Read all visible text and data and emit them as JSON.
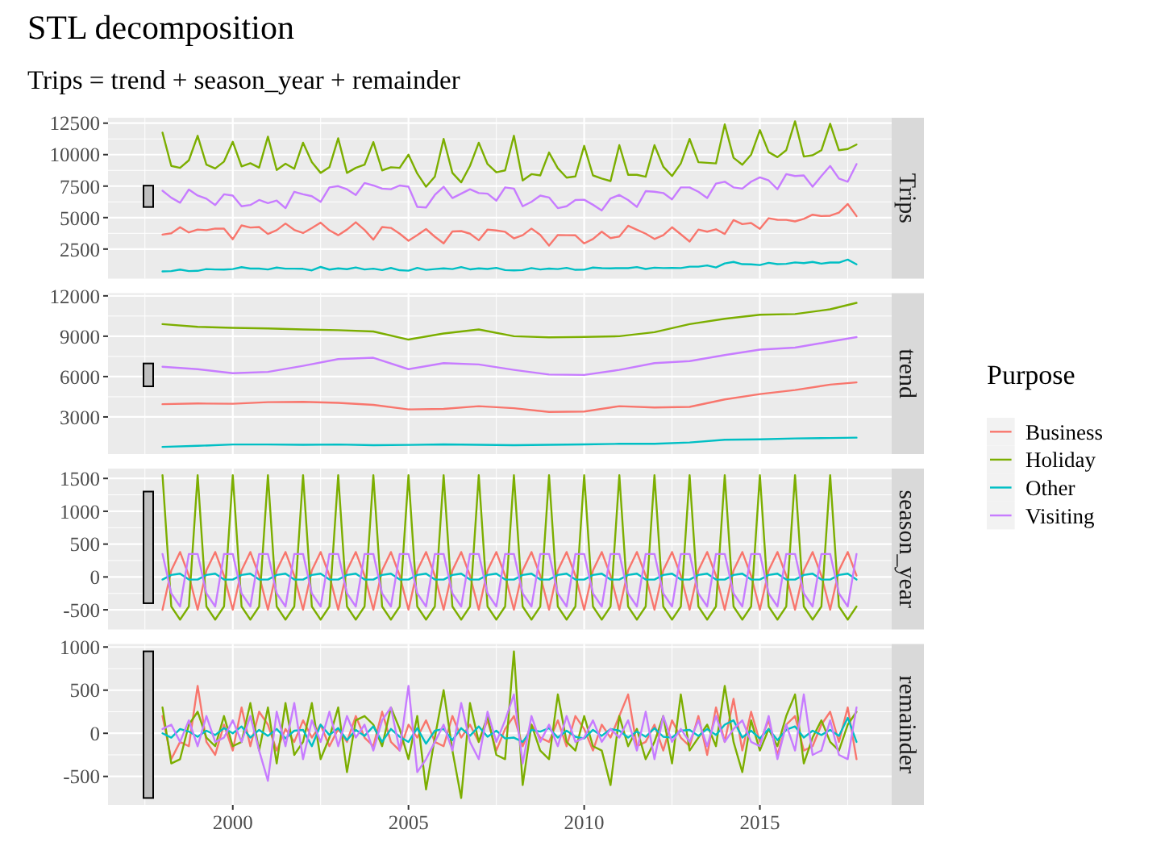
{
  "chart_data": [
    {
      "type": "line",
      "title": "STL decomposition",
      "subtitle": "Trips = trend + season_year + remainder",
      "ylabel": "Trips",
      "legend": "right",
      "legend_title": "Purpose",
      "grid": true,
      "tick_labels": "y",
      "xlim": [
        1996.45,
        2018.75
      ],
      "xticks": [
        {
          "value": 1997.5,
          "label": null
        },
        2000,
        {
          "value": 2002.5,
          "label": null
        },
        2005,
        {
          "value": 2007.5,
          "label": null
        },
        2010,
        {
          "value": 2012.5,
          "label": null
        },
        2015,
        {
          "value": 2017.5,
          "label": null
        }
      ],
      "ylim": [
        150,
        12930
      ],
      "yticks": [
        2500,
        5000,
        7500,
        10000,
        12500
      ],
      "x": [
        1998,
        1998.25,
        1998.5,
        1998.75,
        1999,
        1999.25,
        1999.5,
        1999.75,
        2000,
        2000.25,
        2000.5,
        2000.75,
        2001,
        2001.25,
        2001.5,
        2001.75,
        2002,
        2002.25,
        2002.5,
        2002.75,
        2003,
        2003.25,
        2003.5,
        2003.75,
        2004,
        2004.25,
        2004.5,
        2004.75,
        2005,
        2005.25,
        2005.5,
        2005.75,
        2006,
        2006.25,
        2006.5,
        2006.75,
        2007,
        2007.25,
        2007.5,
        2007.75,
        2008,
        2008.25,
        2008.5,
        2008.75,
        2009,
        2009.25,
        2009.5,
        2009.75,
        2010,
        2010.25,
        2010.5,
        2010.75,
        2011,
        2011.25,
        2011.5,
        2011.75,
        2012,
        2012.25,
        2012.5,
        2012.75,
        2013,
        2013.25,
        2013.5,
        2013.75,
        2014,
        2014.25,
        2014.5,
        2014.75,
        2015,
        2015.25,
        2015.5,
        2015.75,
        2016,
        2016.25,
        2016.5,
        2016.75,
        2017,
        2017.25,
        2017.5,
        2017.75
      ],
      "series": [
        {
          "name": "Business",
          "color": "#f8766d",
          "values": [
            3650,
            3750,
            4230,
            3820,
            4050,
            4000,
            4130,
            4120,
            3280,
            4380,
            4210,
            4250,
            3700,
            4000,
            4530,
            4020,
            3770,
            4170,
            4600,
            3990,
            3600,
            4050,
            4630,
            4020,
            3250,
            4250,
            4180,
            3720,
            3160,
            3610,
            4090,
            3480,
            2950,
            3900,
            3930,
            3720,
            3200,
            4050,
            3980,
            3870,
            3350,
            3600,
            4130,
            3620,
            2770,
            3620,
            3600,
            3590,
            2950,
            3300,
            3880,
            3370,
            3500,
            4350,
            4030,
            3720,
            3300,
            3600,
            4230,
            3670,
            3100,
            4050,
            3880,
            4070,
            3700,
            4800,
            4480,
            4570,
            4100,
            4950,
            4830,
            4820,
            4700,
            4900,
            5230,
            5120,
            5150,
            5400,
            6080,
            5120
          ]
        },
        {
          "name": "Holiday",
          "color": "#7cae00",
          "values": [
            11750,
            9100,
            8950,
            9550,
            11500,
            9200,
            8900,
            9450,
            11020,
            9070,
            9320,
            8970,
            11430,
            8780,
            9280,
            8880,
            10950,
            9400,
            8550,
            9000,
            11300,
            8550,
            8950,
            9200,
            11000,
            8750,
            9000,
            8950,
            10000,
            8500,
            7450,
            8250,
            11250,
            8550,
            7800,
            9100,
            10950,
            9250,
            8600,
            8750,
            11500,
            7950,
            8450,
            8350,
            10170,
            8920,
            8170,
            8270,
            10700,
            8350,
            8100,
            7900,
            10750,
            8400,
            8400,
            8250,
            10750,
            9050,
            8300,
            9300,
            11250,
            9400,
            9350,
            9300,
            12400,
            9750,
            9200,
            10000,
            11950,
            10200,
            9800,
            10350,
            12650,
            9850,
            9950,
            10350,
            12450,
            10350,
            10450,
            10800
          ]
        },
        {
          "name": "Other",
          "color": "#00bfc4",
          "values": [
            730,
            750,
            870,
            750,
            770,
            910,
            880,
            870,
            910,
            1060,
            950,
            950,
            880,
            1030,
            940,
            940,
            930,
            810,
            1080,
            870,
            970,
            900,
            1040,
            880,
            940,
            830,
            1000,
            820,
            780,
            1010,
            850,
            910,
            970,
            910,
            1070,
            890,
            970,
            920,
            1010,
            830,
            810,
            830,
            990,
            880,
            950,
            910,
            1010,
            850,
            860,
            1030,
            980,
            970,
            990,
            980,
            1070,
            920,
            1020,
            990,
            1000,
            990,
            1100,
            1100,
            1200,
            1040,
            1360,
            1480,
            1300,
            1290,
            1230,
            1410,
            1300,
            1330,
            1440,
            1380,
            1480,
            1340,
            1430,
            1430,
            1660,
            1290
          ]
        },
        {
          "name": "Visiting",
          "color": "#c77cff",
          "values": [
            7130,
            6580,
            6180,
            7230,
            6750,
            6500,
            6000,
            6850,
            6750,
            5900,
            6000,
            6400,
            6150,
            6350,
            5750,
            7050,
            6850,
            6700,
            6250,
            7400,
            7500,
            7250,
            6800,
            7750,
            7550,
            7300,
            7250,
            7550,
            7450,
            5850,
            5800,
            6800,
            7450,
            6550,
            6900,
            7250,
            6950,
            6900,
            6350,
            7400,
            7300,
            5900,
            6250,
            6750,
            6600,
            5750,
            5900,
            6400,
            6420,
            6020,
            5570,
            6520,
            6800,
            6400,
            5850,
            7100,
            7050,
            6950,
            6450,
            7400,
            7400,
            7050,
            6550,
            7700,
            7850,
            7400,
            7300,
            7850,
            8200,
            7950,
            7250,
            8450,
            8300,
            8350,
            7450,
            8300,
            9100,
            8100,
            7850,
            9250
          ]
        }
      ]
    },
    {
      "type": "line",
      "ylabel": "trend",
      "grid": true,
      "tick_labels": "y",
      "xlim": [
        1996.45,
        2018.75
      ],
      "xticks": [
        {
          "value": 1997.5,
          "label": null
        },
        2000,
        {
          "value": 2002.5,
          "label": null
        },
        2005,
        {
          "value": 2007.5,
          "label": null
        },
        2010,
        {
          "value": 2012.5,
          "label": null
        },
        2015,
        {
          "value": 2017.5,
          "label": null
        }
      ],
      "ylim": [
        240,
        12200
      ],
      "yticks": [
        3000,
        6000,
        9000,
        12000
      ],
      "x": [
        1998,
        1999,
        2000,
        2001,
        2002,
        2003,
        2004,
        2005,
        2006,
        2007,
        2008,
        2009,
        2010,
        2011,
        2012,
        2013,
        2014,
        2015,
        2016,
        2017,
        2017.75
      ],
      "series": [
        {
          "color": "#f8766d",
          "values": [
            3950,
            4000,
            3980,
            4100,
            4120,
            4050,
            3900,
            3560,
            3600,
            3800,
            3650,
            3370,
            3400,
            3800,
            3700,
            3750,
            4300,
            4700,
            5000,
            5400,
            5570
          ]
        },
        {
          "color": "#7cae00",
          "values": [
            9900,
            9700,
            9620,
            9580,
            9500,
            9450,
            9350,
            8750,
            9200,
            9500,
            9000,
            8920,
            8950,
            9000,
            9300,
            9900,
            10300,
            10600,
            10650,
            11000,
            11480
          ]
        },
        {
          "color": "#00bfc4",
          "values": [
            770,
            850,
            950,
            950,
            930,
            950,
            900,
            920,
            960,
            930,
            900,
            930,
            960,
            1000,
            1000,
            1100,
            1300,
            1330,
            1400,
            1430,
            1460
          ]
        },
        {
          "color": "#c77cff",
          "values": [
            6730,
            6550,
            6250,
            6350,
            6800,
            7300,
            7400,
            6550,
            7000,
            6900,
            6500,
            6150,
            6120,
            6500,
            7000,
            7150,
            7600,
            8000,
            8150,
            8600,
            8930
          ]
        }
      ]
    },
    {
      "type": "line",
      "ylabel": "season_year",
      "grid": true,
      "tick_labels": "y",
      "xlim": [
        1996.45,
        2018.75
      ],
      "xticks": [
        {
          "value": 1997.5,
          "label": null
        },
        2000,
        {
          "value": 2002.5,
          "label": null
        },
        2005,
        {
          "value": 2007.5,
          "label": null
        },
        2010,
        {
          "value": 2012.5,
          "label": null
        },
        2015,
        {
          "value": 2017.5,
          "label": null
        }
      ],
      "ylim": [
        -800,
        1650
      ],
      "yticks": [
        -500,
        0,
        500,
        1000,
        1500
      ],
      "x": [
        1998,
        1998.25,
        1998.5,
        1998.75,
        1999,
        1999.25,
        1999.5,
        1999.75,
        2000,
        2000.25,
        2000.5,
        2000.75,
        2001,
        2001.25,
        2001.5,
        2001.75,
        2002,
        2002.25,
        2002.5,
        2002.75,
        2003,
        2003.25,
        2003.5,
        2003.75,
        2004,
        2004.25,
        2004.5,
        2004.75,
        2005,
        2005.25,
        2005.5,
        2005.75,
        2006,
        2006.25,
        2006.5,
        2006.75,
        2007,
        2007.25,
        2007.5,
        2007.75,
        2008,
        2008.25,
        2008.5,
        2008.75,
        2009,
        2009.25,
        2009.5,
        2009.75,
        2010,
        2010.25,
        2010.5,
        2010.75,
        2011,
        2011.25,
        2011.5,
        2011.75,
        2012,
        2012.25,
        2012.5,
        2012.75,
        2013,
        2013.25,
        2013.5,
        2013.75,
        2014,
        2014.25,
        2014.5,
        2014.75,
        2015,
        2015.25,
        2015.5,
        2015.75,
        2016,
        2016.25,
        2016.5,
        2016.75,
        2017,
        2017.25,
        2017.5,
        2017.75
      ],
      "series": [
        {
          "color": "#f8766d",
          "values": [
            -500,
            100,
            380,
            20,
            -500,
            100,
            380,
            20,
            -500,
            100,
            380,
            20,
            -500,
            100,
            380,
            20,
            -500,
            100,
            380,
            20,
            -500,
            100,
            380,
            20,
            -500,
            100,
            380,
            20,
            -500,
            100,
            380,
            20,
            -500,
            100,
            380,
            20,
            -500,
            100,
            380,
            20,
            -500,
            100,
            380,
            20,
            -500,
            100,
            380,
            20,
            -500,
            100,
            380,
            20,
            -500,
            100,
            380,
            20,
            -500,
            100,
            380,
            20,
            -500,
            100,
            380,
            20,
            -500,
            100,
            380,
            20,
            -500,
            100,
            380,
            20,
            -500,
            100,
            380,
            20,
            -500,
            100,
            380,
            20
          ]
        },
        {
          "color": "#7cae00",
          "values": [
            1550,
            -450,
            -650,
            -450,
            1550,
            -450,
            -650,
            -450,
            1550,
            -450,
            -650,
            -450,
            1550,
            -450,
            -650,
            -450,
            1550,
            -450,
            -650,
            -450,
            1550,
            -450,
            -650,
            -450,
            1550,
            -450,
            -650,
            -450,
            1550,
            -450,
            -650,
            -450,
            1550,
            -450,
            -650,
            -450,
            1550,
            -450,
            -650,
            -450,
            1550,
            -450,
            -650,
            -450,
            1550,
            -450,
            -650,
            -450,
            1550,
            -450,
            -650,
            -450,
            1550,
            -450,
            -650,
            -450,
            1550,
            -450,
            -650,
            -450,
            1550,
            -450,
            -650,
            -450,
            1550,
            -450,
            -650,
            -450,
            1550,
            -450,
            -650,
            -450,
            1550,
            -450,
            -650,
            -450,
            1550,
            -450,
            -650,
            -450
          ]
        },
        {
          "color": "#00bfc4",
          "values": [
            -40,
            30,
            50,
            -40,
            -40,
            30,
            50,
            -40,
            -40,
            30,
            50,
            -40,
            -40,
            30,
            50,
            -40,
            -40,
            30,
            50,
            -40,
            -40,
            30,
            50,
            -40,
            -40,
            30,
            50,
            -40,
            -40,
            30,
            50,
            -40,
            -40,
            30,
            50,
            -40,
            -40,
            30,
            50,
            -40,
            -40,
            30,
            50,
            -40,
            -40,
            30,
            50,
            -40,
            -40,
            30,
            50,
            -40,
            -40,
            30,
            50,
            -40,
            -40,
            30,
            50,
            -40,
            -40,
            30,
            50,
            -40,
            -40,
            30,
            50,
            -40,
            -40,
            30,
            50,
            -40,
            -40,
            30,
            50,
            -40,
            -40,
            30,
            50,
            -40
          ]
        },
        {
          "color": "#c77cff",
          "values": [
            350,
            -250,
            -450,
            350,
            350,
            -250,
            -450,
            350,
            350,
            -250,
            -450,
            350,
            350,
            -250,
            -450,
            350,
            350,
            -250,
            -450,
            350,
            350,
            -250,
            -450,
            350,
            350,
            -250,
            -450,
            350,
            350,
            -250,
            -450,
            350,
            350,
            -250,
            -450,
            350,
            350,
            -250,
            -450,
            350,
            350,
            -250,
            -450,
            350,
            350,
            -250,
            -450,
            350,
            350,
            -250,
            -450,
            350,
            350,
            -250,
            -450,
            350,
            350,
            -250,
            -450,
            350,
            350,
            -250,
            -450,
            350,
            350,
            -250,
            -450,
            350,
            350,
            -250,
            -450,
            350,
            350,
            -250,
            -450,
            350,
            350,
            -250,
            -450,
            350
          ]
        }
      ]
    },
    {
      "type": "line",
      "ylabel": "remainder",
      "grid": true,
      "xlim": [
        1996.45,
        2018.75
      ],
      "xticks": [
        {
          "value": 1997.5,
          "label": null
        },
        2000,
        {
          "value": 2002.5,
          "label": null
        },
        2005,
        {
          "value": 2007.5,
          "label": null
        },
        2010,
        {
          "value": 2012.5,
          "label": null
        },
        2015,
        {
          "value": 2017.5,
          "label": null
        }
      ],
      "ylim": [
        -830,
        1035
      ],
      "yticks": [
        -500,
        0,
        500,
        1000
      ],
      "x": [
        1998,
        1998.25,
        1998.5,
        1998.75,
        1999,
        1999.25,
        1999.5,
        1999.75,
        2000,
        2000.25,
        2000.5,
        2000.75,
        2001,
        2001.25,
        2001.5,
        2001.75,
        2002,
        2002.25,
        2002.5,
        2002.75,
        2003,
        2003.25,
        2003.5,
        2003.75,
        2004,
        2004.25,
        2004.5,
        2004.75,
        2005,
        2005.25,
        2005.5,
        2005.75,
        2006,
        2006.25,
        2006.5,
        2006.75,
        2007,
        2007.25,
        2007.5,
        2007.75,
        2008,
        2008.25,
        2008.5,
        2008.75,
        2009,
        2009.25,
        2009.5,
        2009.75,
        2010,
        2010.25,
        2010.5,
        2010.75,
        2011,
        2011.25,
        2011.5,
        2011.75,
        2012,
        2012.25,
        2012.5,
        2012.75,
        2013,
        2013.25,
        2013.5,
        2013.75,
        2014,
        2014.25,
        2014.5,
        2014.75,
        2015,
        2015.25,
        2015.5,
        2015.75,
        2016,
        2016.25,
        2016.5,
        2016.75,
        2017,
        2017.25,
        2017.5,
        2017.75
      ],
      "series": [
        {
          "color": "#f8766d",
          "values": [
            200,
            -300,
            -100,
            -150,
            550,
            -100,
            -250,
            100,
            -200,
            300,
            -150,
            250,
            100,
            -200,
            50,
            -100,
            150,
            -50,
            100,
            -150,
            50,
            -100,
            200,
            -50,
            -150,
            250,
            -100,
            -200,
            100,
            -50,
            150,
            -100,
            -150,
            200,
            -50,
            100,
            -100,
            150,
            -200,
            50,
            200,
            -150,
            100,
            -50,
            -100,
            150,
            -150,
            200,
            50,
            -200,
            100,
            -50,
            200,
            450,
            -150,
            -100,
            100,
            -200,
            150,
            -50,
            -150,
            200,
            -250,
            300,
            -100,
            400,
            -200,
            250,
            -100,
            150,
            -250,
            100,
            200,
            -200,
            -150,
            100,
            250,
            -100,
            300,
            -300
          ]
        },
        {
          "color": "#7cae00",
          "values": [
            300,
            -350,
            -300,
            100,
            250,
            -50,
            -150,
            200,
            -150,
            -100,
            350,
            -200,
            300,
            -350,
            350,
            -250,
            -100,
            350,
            -300,
            -50,
            300,
            -450,
            150,
            200,
            100,
            -150,
            300,
            50,
            -300,
            200,
            -650,
            -50,
            500,
            -200,
            -750,
            350,
            -100,
            200,
            -250,
            -300,
            950,
            -600,
            100,
            -200,
            -300,
            450,
            -100,
            -200,
            200,
            -150,
            -200,
            -600,
            200,
            -150,
            50,
            -300,
            -100,
            200,
            -350,
            450,
            -200,
            -50,
            100,
            -150,
            550,
            -100,
            -450,
            150,
            -200,
            50,
            -150,
            200,
            450,
            -350,
            -50,
            150,
            -100,
            -200,
            100,
            250
          ]
        },
        {
          "color": "#00bfc4",
          "values": [
            0,
            -50,
            50,
            20,
            -40,
            30,
            -20,
            60,
            0,
            80,
            -50,
            40,
            -30,
            50,
            -60,
            30,
            40,
            -150,
            100,
            -20,
            60,
            -80,
            40,
            -30,
            80,
            -100,
            50,
            -40,
            -100,
            60,
            -120,
            30,
            50,
            -80,
            60,
            -30,
            80,
            -40,
            30,
            -60,
            -50,
            -100,
            40,
            20,
            60,
            -50,
            30,
            -40,
            -60,
            40,
            -30,
            50,
            30,
            -50,
            20,
            -40,
            60,
            -40,
            -50,
            30,
            40,
            -30,
            50,
            -20,
            100,
            150,
            -50,
            30,
            -60,
            50,
            -80,
            40,
            80,
            -50,
            30,
            -20,
            40,
            -30,
            180,
            -100
          ]
        },
        {
          "color": "#c77cff",
          "values": [
            50,
            100,
            -100,
            150,
            -150,
            200,
            -100,
            -50,
            150,
            -100,
            200,
            -200,
            -550,
            250,
            -150,
            350,
            -300,
            150,
            -100,
            250,
            -150,
            200,
            -50,
            100,
            -200,
            150,
            300,
            -200,
            550,
            -450,
            -300,
            -100,
            100,
            -200,
            350,
            -100,
            -300,
            250,
            -100,
            150,
            450,
            -350,
            200,
            -100,
            100,
            -150,
            200,
            -100,
            -50,
            150,
            -100,
            50,
            -50,
            150,
            -200,
            250,
            -300,
            200,
            -100,
            50,
            -100,
            150,
            -150,
            200,
            -100,
            50,
            150,
            -100,
            -150,
            200,
            -300,
            100,
            -200,
            450,
            -250,
            -200,
            150,
            -250,
            -300,
            300
          ]
        }
      ]
    }
  ]
}
